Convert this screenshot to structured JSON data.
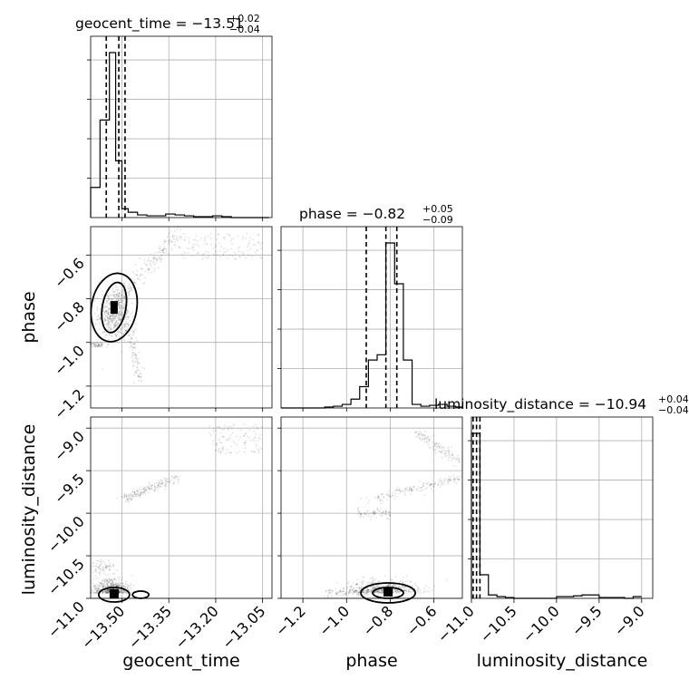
{
  "chart_data": {
    "type": "corner",
    "parameters": [
      "geocent_time",
      "phase",
      "luminosity_distance"
    ],
    "axis_labels": {
      "x": [
        "geocent_time",
        "phase",
        "luminosity_distance"
      ],
      "y": [
        "phase",
        "luminosity_distance"
      ]
    },
    "titles": [
      {
        "param": "geocent_time",
        "text": "geocent_time = −13.51",
        "upper": "+0.02",
        "lower": "−0.04"
      },
      {
        "param": "phase",
        "text": "phase = −0.82",
        "upper": "+0.05",
        "lower": "−0.09"
      },
      {
        "param": "luminosity_distance",
        "text": "luminosity_distance = −10.94",
        "upper": "+0.04",
        "lower": "−0.04"
      }
    ],
    "ranges": {
      "geocent_time": [
        -13.6,
        -13.02
      ],
      "phase": [
        -1.3,
        -0.47
      ],
      "luminosity_distance": [
        -11.0,
        -8.87
      ]
    },
    "ticks": {
      "geocent_time": {
        "values": [
          -13.5,
          -13.35,
          -13.2,
          -13.05
        ],
        "labels": [
          "−13.50",
          "−13.35",
          "−13.20",
          "−13.05"
        ]
      },
      "phase": {
        "values": [
          -1.2,
          -1.0,
          -0.8,
          -0.6
        ],
        "labels": [
          "−1.2",
          "−1.0",
          "−0.8",
          "−0.6"
        ]
      },
      "luminosity_distance": {
        "values": [
          -11.0,
          -10.5,
          -10.0,
          -9.5,
          -9.0
        ],
        "labels": [
          "−11.0",
          "−10.5",
          "−10.0",
          "−9.5",
          "−9.0"
        ]
      }
    },
    "histograms": {
      "geocent_time": {
        "bin_edges": [
          -13.6,
          -13.57,
          -13.54,
          -13.52,
          -13.5,
          -13.48,
          -13.45,
          -13.42,
          -13.39,
          -13.36,
          -13.33,
          -13.3,
          -13.27,
          -13.24,
          -13.21,
          -13.18,
          -13.15,
          -13.12,
          -13.09,
          -13.06,
          -13.03
        ],
        "counts": [
          0.17,
          0.55,
          0.93,
          0.32,
          0.05,
          0.03,
          0.015,
          0.01,
          0.01,
          0.02,
          0.015,
          0.01,
          0.005,
          0.005,
          0.01,
          0.005,
          0.0,
          0.0,
          0.0,
          0.0
        ],
        "quantiles": [
          -13.55,
          -13.51,
          -13.49
        ]
      },
      "phase": {
        "bin_edges": [
          -1.3,
          -1.26,
          -1.22,
          -1.18,
          -1.14,
          -1.1,
          -1.06,
          -1.02,
          -0.98,
          -0.94,
          -0.9,
          -0.86,
          -0.82,
          -0.78,
          -0.74,
          -0.7,
          -0.66,
          -0.62,
          -0.58,
          -0.54,
          -0.5,
          -0.47
        ],
        "counts": [
          0.0,
          0.0,
          0.0,
          0.0,
          0.0,
          0.005,
          0.01,
          0.02,
          0.05,
          0.12,
          0.27,
          0.3,
          0.93,
          0.7,
          0.27,
          0.02,
          0.01,
          0.015,
          0.02,
          0.01,
          0.005
        ],
        "quantiles": [
          -0.91,
          -0.82,
          -0.77
        ]
      },
      "luminosity_distance": {
        "bin_edges": [
          -11.0,
          -10.9,
          -10.8,
          -10.7,
          -10.6,
          -10.5,
          -10.4,
          -10.3,
          -10.2,
          -10.1,
          -10.0,
          -9.9,
          -9.8,
          -9.7,
          -9.6,
          -9.5,
          -9.4,
          -9.3,
          -9.2,
          -9.1,
          -9.0
        ],
        "counts": [
          0.98,
          0.14,
          0.02,
          0.01,
          0.005,
          0.0,
          0.0,
          0.0,
          0.0,
          0.0,
          0.01,
          0.01,
          0.015,
          0.02,
          0.02,
          0.005,
          0.005,
          0.005,
          0.0,
          0.01
        ],
        "quantiles": [
          -10.98,
          -10.94,
          -10.9
        ]
      }
    },
    "scatter_pairs": [
      {
        "x": "geocent_time",
        "y": "phase"
      },
      {
        "x": "geocent_time",
        "y": "luminosity_distance"
      },
      {
        "x": "phase",
        "y": "luminosity_distance"
      }
    ],
    "grid": true
  }
}
